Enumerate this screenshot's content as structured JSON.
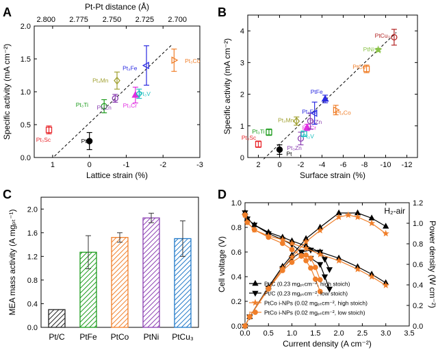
{
  "panels": [
    {
      "label": "A"
    },
    {
      "label": "B"
    },
    {
      "label": "C"
    },
    {
      "label": "D"
    }
  ],
  "chart_data": [
    {
      "panel": "A",
      "type": "scatter",
      "xlabel": "Lattice strain (%)",
      "ylabel": "Specific activity (mA cm⁻²)",
      "top_xlabel": "Pt-Pt distance (Å)",
      "xlim": [
        1.5,
        -3
      ],
      "ylim": [
        0,
        2.0
      ],
      "xticks": [
        1,
        0,
        -1,
        -2,
        -3
      ],
      "xtick_labels": [
        "1",
        "0",
        "-1",
        "-2",
        "-3"
      ],
      "yticks": [
        0,
        0.5,
        1.0,
        1.5,
        2.0
      ],
      "ytick_labels": [
        "0.0",
        "0.5",
        "1.0",
        "1.5",
        "2.0"
      ],
      "top_ticks": [
        {
          "label": "2.800",
          "x": 1.18
        },
        {
          "label": "2.775",
          "x": 0.29
        },
        {
          "label": "2.750",
          "x": -0.61
        },
        {
          "label": "2.725",
          "x": -1.5
        },
        {
          "label": "2.700",
          "x": -2.39
        }
      ],
      "trendline": [
        [
          0.95,
          0.02
        ],
        [
          -2.25,
          1.72
        ]
      ],
      "points": [
        {
          "name": "Pt",
          "x": 0,
          "y": 0.25,
          "err": 0.13,
          "color": "#000000",
          "marker": "circle-filled",
          "lx": 0.15,
          "ly": 0.25
        },
        {
          "name": "Pt₃Sc",
          "x": 1.1,
          "y": 0.42,
          "err": 0.06,
          "color": "#e8262b",
          "marker": "square",
          "lx": 1.25,
          "ly": 0.27
        },
        {
          "name": "Pt₃Ti",
          "x": -0.4,
          "y": 0.78,
          "err": 0.1,
          "color": "#1b9b1b",
          "marker": "circle",
          "lx": 0.2,
          "ly": 0.8
        },
        {
          "name": "Pt₃Zn",
          "x": -0.7,
          "y": 0.9,
          "err": 0.06,
          "color": "#8b3fb2",
          "marker": "circle",
          "lx": -0.4,
          "ly": 0.76
        },
        {
          "name": "Pt₃Mn",
          "x": -0.75,
          "y": 1.17,
          "err": 0.13,
          "color": "#a0a030",
          "marker": "diamond",
          "lx": -0.3,
          "ly": 1.17
        },
        {
          "name": "Pt₃Cr",
          "x": -1.25,
          "y": 0.95,
          "err": 0.12,
          "color": "#e02ee0",
          "marker": "triangle",
          "lx": -1.1,
          "ly": 0.79
        },
        {
          "name": "Pt₃V",
          "x": -1.35,
          "y": 0.97,
          "err": 0.07,
          "color": "#20c0c0",
          "marker": "diamond",
          "lx": -1.5,
          "ly": 0.97
        },
        {
          "name": "Pt₃Fe",
          "x": -1.55,
          "y": 1.4,
          "err": 0.3,
          "color": "#2a2ae0",
          "marker": "triangle-left",
          "lx": -1.1,
          "ly": 1.36
        },
        {
          "name": "Pt₃Co",
          "x": -2.3,
          "y": 1.48,
          "err": 0.17,
          "color": "#f07f2a",
          "marker": "triangle-right",
          "lx": -2.8,
          "ly": 1.47
        }
      ]
    },
    {
      "panel": "B",
      "type": "scatter",
      "xlabel": "Surface strain (%)",
      "ylabel": "Specific activity (mA cm⁻²)",
      "xlim": [
        3,
        -13
      ],
      "ylim": [
        0,
        4.5
      ],
      "xticks": [
        2,
        0,
        -2,
        -4,
        -6,
        -8,
        -10,
        -12
      ],
      "xtick_labels": [
        "2",
        "0",
        "-2",
        "-4",
        "-6",
        "-8",
        "-10",
        "-12"
      ],
      "yticks": [
        0,
        1,
        2,
        3,
        4
      ],
      "ytick_labels": [
        "0",
        "1",
        "2",
        "3",
        "4"
      ],
      "trendline": [
        [
          1.5,
          -0.05
        ],
        [
          -11,
          3.95
        ]
      ],
      "points": [
        {
          "name": "Pt",
          "x": 0,
          "y": 0.25,
          "err": 0.15,
          "color": "#000000",
          "marker": "circle-filled",
          "lx": -0.9,
          "ly": 0.12
        },
        {
          "name": "Pt₃Sc",
          "x": 2,
          "y": 0.42,
          "err": 0.1,
          "color": "#e8262b",
          "marker": "square",
          "lx": 2.9,
          "ly": 0.63
        },
        {
          "name": "Pt₃Ti",
          "x": 1,
          "y": 0.8,
          "err": 0.1,
          "color": "#1b9b1b",
          "marker": "square",
          "lx": 2.0,
          "ly": 0.82
        },
        {
          "name": "Pt₃Zn",
          "x": -2,
          "y": 0.6,
          "err": 0.2,
          "color": "#8b3fb2",
          "marker": "circle",
          "lx": -1.4,
          "ly": 0.3
        },
        {
          "name": "Pt₃V",
          "x": -2.3,
          "y": 0.75,
          "err": 0.08,
          "color": "#20c0c0",
          "marker": "square",
          "lx": -2.7,
          "ly": 0.67
        },
        {
          "name": "Pt₃Cr",
          "x": -2.6,
          "y": 0.95,
          "err": 0.1,
          "color": "#e02ee0",
          "marker": "triangle",
          "lx": -2.8,
          "ly": 0.94
        },
        {
          "name": "Pt₃Mn",
          "x": -1.6,
          "y": 1.15,
          "err": 0.13,
          "color": "#a0a030",
          "marker": "diamond",
          "lx": -0.6,
          "ly": 1.18
        },
        {
          "name": "PtZn",
          "x": -2.9,
          "y": 1.15,
          "err": 0.25,
          "color": "#8b3fb2",
          "marker": "circle",
          "lx": -3.4,
          "ly": 1.12
        },
        {
          "name": "Pt₃Fe",
          "x": -3.3,
          "y": 1.4,
          "err": 0.35,
          "color": "#2a2ae0",
          "marker": "triangle-left",
          "lx": -2.8,
          "ly": 1.45
        },
        {
          "name": "PtFe",
          "x": -4.3,
          "y": 1.85,
          "err": 0.12,
          "color": "#2a2ae0",
          "marker": "triangle",
          "lx": -3.5,
          "ly": 2.08
        },
        {
          "name": "Pt₃Co",
          "x": -5.3,
          "y": 1.5,
          "err": 0.15,
          "color": "#f07f2a",
          "marker": "triangle-right",
          "lx": -6.0,
          "ly": 1.42
        },
        {
          "name": "PtCo",
          "x": -8.2,
          "y": 2.8,
          "err": 0.12,
          "color": "#f07f2a",
          "marker": "square",
          "lx": -7.5,
          "ly": 2.87
        },
        {
          "name": "PtNi",
          "x": -9.3,
          "y": 3.4,
          "err": 0.05,
          "color": "#8bc34a",
          "marker": "star",
          "lx": -8.4,
          "ly": 3.42
        },
        {
          "name": "PtCu₃",
          "x": -10.8,
          "y": 3.8,
          "err": 0.25,
          "color": "#b22222",
          "marker": "circle",
          "lx": -9.7,
          "ly": 3.85
        }
      ]
    },
    {
      "panel": "C",
      "type": "bar",
      "ylabel": "MEA mass activity (A mgₚₜ⁻¹)",
      "ylim": [
        0,
        2.2
      ],
      "yticks": [
        0,
        0.4,
        0.8,
        1.2,
        1.6,
        2.0
      ],
      "ytick_labels": [
        "0.0",
        "0.4",
        "0.8",
        "1.2",
        "1.6",
        "2.0"
      ],
      "categories": [
        "Pt/C",
        "PtFe",
        "PtCo",
        "PtNi",
        "PtCu₃"
      ],
      "values": [
        0.3,
        1.27,
        1.52,
        1.85,
        1.5
      ],
      "errors": [
        0.0,
        0.28,
        0.08,
        0.08,
        0.3
      ],
      "colors": [
        "#222222",
        "#1b9b1b",
        "#f07f2a",
        "#8b3fb2",
        "#1f78c8"
      ]
    },
    {
      "panel": "D",
      "type": "line",
      "annotation": "H₂-air",
      "xlabel": "Current density (A cm⁻²)",
      "ylabel": "Cell voltage (V)",
      "y2label": "Power density (W cm⁻²)",
      "xlim": [
        0,
        3.5
      ],
      "ylim": [
        0,
        1.0
      ],
      "y2lim": [
        0,
        1.2
      ],
      "xticks": [
        0,
        0.5,
        1.0,
        1.5,
        2.0,
        2.5,
        3.0,
        3.5
      ],
      "xtick_labels": [
        "0.0",
        "0.5",
        "1.0",
        "1.5",
        "2.0",
        "2.5",
        "3.0",
        "3.5"
      ],
      "yticks": [
        0,
        0.2,
        0.4,
        0.6,
        0.8,
        1.0
      ],
      "ytick_labels": [
        "0.0",
        "0.2",
        "0.4",
        "0.6",
        "0.8",
        "1.0"
      ],
      "y2ticks": [
        0,
        0.2,
        0.4,
        0.6,
        0.8,
        1.0,
        1.2
      ],
      "y2tick_labels": [
        "0.0",
        "0.2",
        "0.4",
        "0.6",
        "0.8",
        "1.0",
        "1.2"
      ],
      "series": [
        {
          "name": "Pt/C (0.23 mgₚₜcm⁻², high stoich)",
          "color": "#000000",
          "marker": "triangle",
          "voltage": {
            "x": [
              0,
              0.05,
              0.2,
              0.5,
              0.8,
              1.0,
              1.3,
              1.6,
              2.0,
              2.4,
              2.7,
              3.0
            ],
            "y": [
              0.92,
              0.87,
              0.82,
              0.76,
              0.72,
              0.69,
              0.65,
              0.6,
              0.55,
              0.48,
              0.42,
              0.35
            ]
          },
          "power": {
            "x": [
              0,
              0.1,
              0.5,
              0.8,
              1.0,
              1.3,
              1.6,
              2.0,
              2.4,
              2.7,
              3.0
            ],
            "y": [
              0,
              0.09,
              0.38,
              0.58,
              0.69,
              0.85,
              0.96,
              1.1,
              1.1,
              1.05,
              0.97
            ]
          }
        },
        {
          "name": "Pt/C (0.23 mgₚₜcm⁻², low stoich)",
          "color": "#000000",
          "marker": "triangle-down",
          "voltage": {
            "x": [
              0,
              0.05,
              0.2,
              0.5,
              0.8,
              1.0,
              1.2,
              1.4,
              1.6,
              1.7,
              1.8
            ],
            "y": [
              0.92,
              0.87,
              0.82,
              0.75,
              0.7,
              0.66,
              0.6,
              0.55,
              0.5,
              0.4,
              0.3
            ]
          },
          "power": {
            "x": [
              0,
              0.1,
              0.5,
              0.8,
              1.0,
              1.2,
              1.4,
              1.6,
              1.7,
              1.8
            ],
            "y": [
              0,
              0.09,
              0.37,
              0.56,
              0.66,
              0.72,
              0.74,
              0.72,
              0.65,
              0.55
            ]
          }
        },
        {
          "name": "PtCo i-NPs (0.02 mgₚₜcm⁻², high stoich)",
          "color": "#f07f2a",
          "marker": "star",
          "voltage": {
            "x": [
              0,
              0.05,
              0.2,
              0.5,
              0.8,
              1.0,
              1.3,
              1.6,
              2.0,
              2.4,
              2.7,
              3.0
            ],
            "y": [
              0.9,
              0.84,
              0.78,
              0.73,
              0.7,
              0.67,
              0.63,
              0.58,
              0.53,
              0.46,
              0.4,
              0.33
            ]
          },
          "power": {
            "x": [
              0,
              0.1,
              0.5,
              0.8,
              1.0,
              1.3,
              1.6,
              2.0,
              2.2,
              2.4,
              2.7,
              3.0
            ],
            "y": [
              0,
              0.09,
              0.37,
              0.56,
              0.67,
              0.82,
              0.93,
              1.06,
              1.08,
              1.06,
              1.0,
              0.9
            ]
          }
        },
        {
          "name": "PtCo i-NPs (0.02 mgₚₜcm⁻², low stoich)",
          "color": "#f07f2a",
          "marker": "circle-filled",
          "voltage": {
            "x": [
              0,
              0.05,
              0.2,
              0.5,
              0.8,
              1.0,
              1.2,
              1.3,
              1.4,
              1.5,
              1.6
            ],
            "y": [
              0.9,
              0.84,
              0.78,
              0.72,
              0.67,
              0.62,
              0.57,
              0.53,
              0.47,
              0.38,
              0.28
            ]
          },
          "power": {
            "x": [
              0,
              0.1,
              0.5,
              0.8,
              1.0,
              1.2,
              1.3,
              1.4,
              1.5,
              1.6
            ],
            "y": [
              0,
              0.09,
              0.36,
              0.54,
              0.62,
              0.68,
              0.69,
              0.66,
              0.57,
              0.45
            ]
          }
        }
      ]
    }
  ]
}
